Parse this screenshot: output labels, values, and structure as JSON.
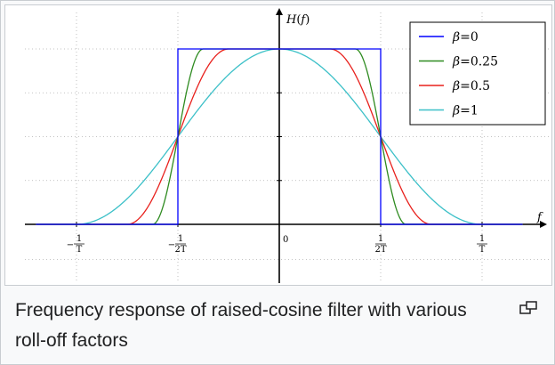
{
  "figure": {
    "caption": "Frequency response of raised-cosine filter with various roll-off factors",
    "enlarge_icon": "enlarge-icon"
  },
  "chart_data": {
    "type": "line",
    "title": "",
    "xlabel": "f",
    "ylabel": "H(f)",
    "xlim": [
      -1.2,
      1.2
    ],
    "ylim": [
      -0.25,
      1.12
    ],
    "x_ticks": [
      {
        "value": -1,
        "label": "−1/T"
      },
      {
        "value": -0.5,
        "label": "−1/2T"
      },
      {
        "value": 0,
        "label": "0"
      },
      {
        "value": 0.5,
        "label": "1/2T"
      },
      {
        "value": 1,
        "label": "1/T"
      }
    ],
    "grid": true,
    "legend": "top-right",
    "series": [
      {
        "name": "β=0",
        "beta": 0,
        "color": "#0000ff"
      },
      {
        "name": "β=0.25",
        "beta": 0.25,
        "color": "#2e8b20"
      },
      {
        "name": "β=0.5",
        "beta": 0.5,
        "color": "#e8201c"
      },
      {
        "name": "β=1",
        "beta": 1,
        "color": "#3cc0c8"
      }
    ]
  }
}
